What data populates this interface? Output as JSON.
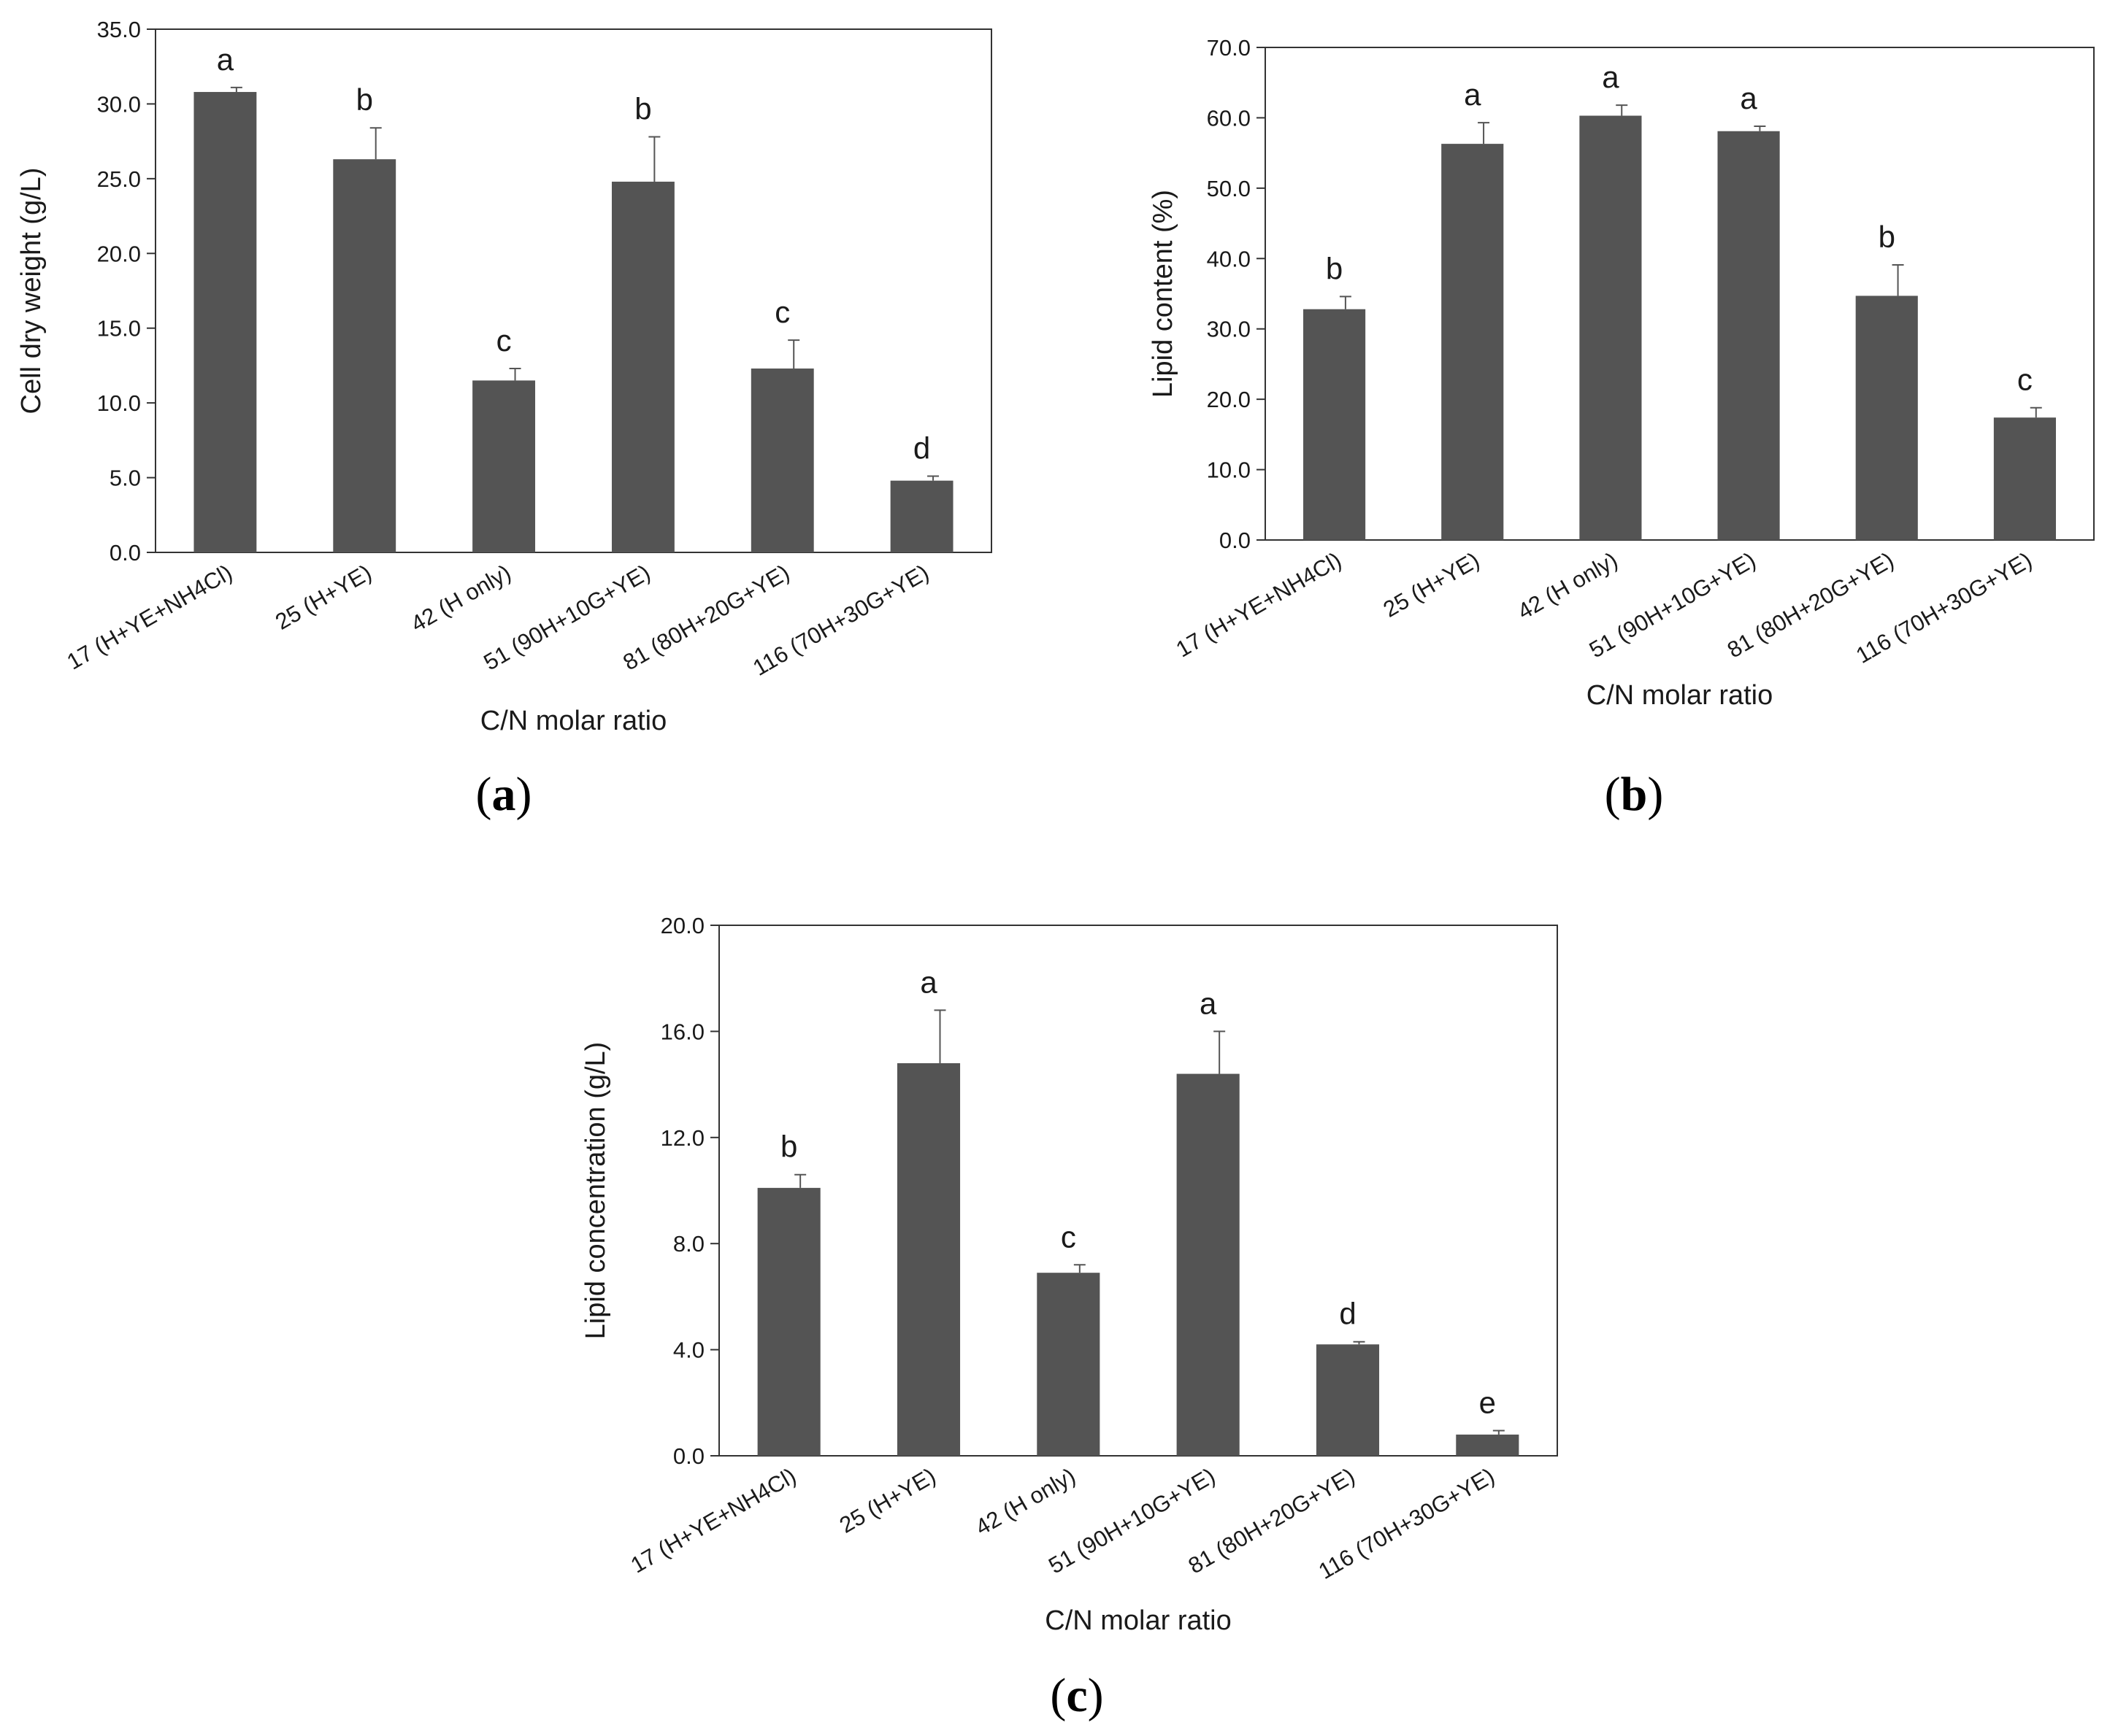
{
  "style": {
    "bar_color": "#545454",
    "axis_color": "#333333",
    "text_color": "#1a1a1a"
  },
  "chart_data": [
    {
      "type": "bar",
      "panel_caption": "a",
      "title": "",
      "xlabel": "C/N molar ratio",
      "ylabel": "Cell dry weight (g/L)",
      "ylim": [
        0,
        35
      ],
      "yticks": [
        0,
        5,
        10,
        15,
        20,
        25,
        30,
        35
      ],
      "ytick_labels": [
        "0.0",
        "5.0",
        "10.0",
        "15.0",
        "20.0",
        "25.0",
        "30.0",
        "35.0"
      ],
      "categories": [
        "17 (H+YE+NH4Cl)",
        "25 (H+YE)",
        "42 (H only)",
        "51 (90H+10G+YE)",
        "81 (80H+20G+YE)",
        "116 (70H+30G+YE)"
      ],
      "values": [
        30.8,
        26.3,
        11.5,
        24.8,
        12.3,
        4.8
      ],
      "errors": [
        0.3,
        2.1,
        0.8,
        3.0,
        1.9,
        0.3
      ],
      "significance": [
        "a",
        "b",
        "c",
        "b",
        "c",
        "d"
      ]
    },
    {
      "type": "bar",
      "panel_caption": "b",
      "title": "",
      "xlabel": "C/N molar ratio",
      "ylabel": "Lipid content (%)",
      "ylim": [
        0,
        70
      ],
      "yticks": [
        0,
        10,
        20,
        30,
        40,
        50,
        60,
        70
      ],
      "ytick_labels": [
        "0.0",
        "10.0",
        "20.0",
        "30.0",
        "40.0",
        "50.0",
        "60.0",
        "70.0"
      ],
      "categories": [
        "17 (H+YE+NH4Cl)",
        "25 (H+YE)",
        "42 (H only)",
        "51 (90H+10G+YE)",
        "81 (80H+20G+YE)",
        "116 (70H+30G+YE)"
      ],
      "values": [
        32.8,
        56.3,
        60.3,
        58.1,
        34.7,
        17.4
      ],
      "errors": [
        1.8,
        3.0,
        1.5,
        0.7,
        4.4,
        1.4
      ],
      "significance": [
        "b",
        "a",
        "a",
        "a",
        "b",
        "c"
      ]
    },
    {
      "type": "bar",
      "panel_caption": "c",
      "title": "",
      "xlabel": "C/N molar ratio",
      "ylabel": "Lipid concentration (g/L)",
      "ylim": [
        0,
        20
      ],
      "yticks": [
        0,
        4,
        8,
        12,
        16,
        20
      ],
      "ytick_labels": [
        "0.0",
        "4.0",
        "8.0",
        "12.0",
        "16.0",
        "20.0"
      ],
      "categories": [
        "17 (H+YE+NH4Cl)",
        "25 (H+YE)",
        "42 (H only)",
        "51 (90H+10G+YE)",
        "81 (80H+20G+YE)",
        "116 (70H+30G+YE)"
      ],
      "values": [
        10.1,
        14.8,
        6.9,
        14.4,
        4.2,
        0.8
      ],
      "errors": [
        0.5,
        2.0,
        0.3,
        1.6,
        0.1,
        0.15
      ],
      "significance": [
        "b",
        "a",
        "c",
        "a",
        "d",
        "e"
      ]
    }
  ]
}
